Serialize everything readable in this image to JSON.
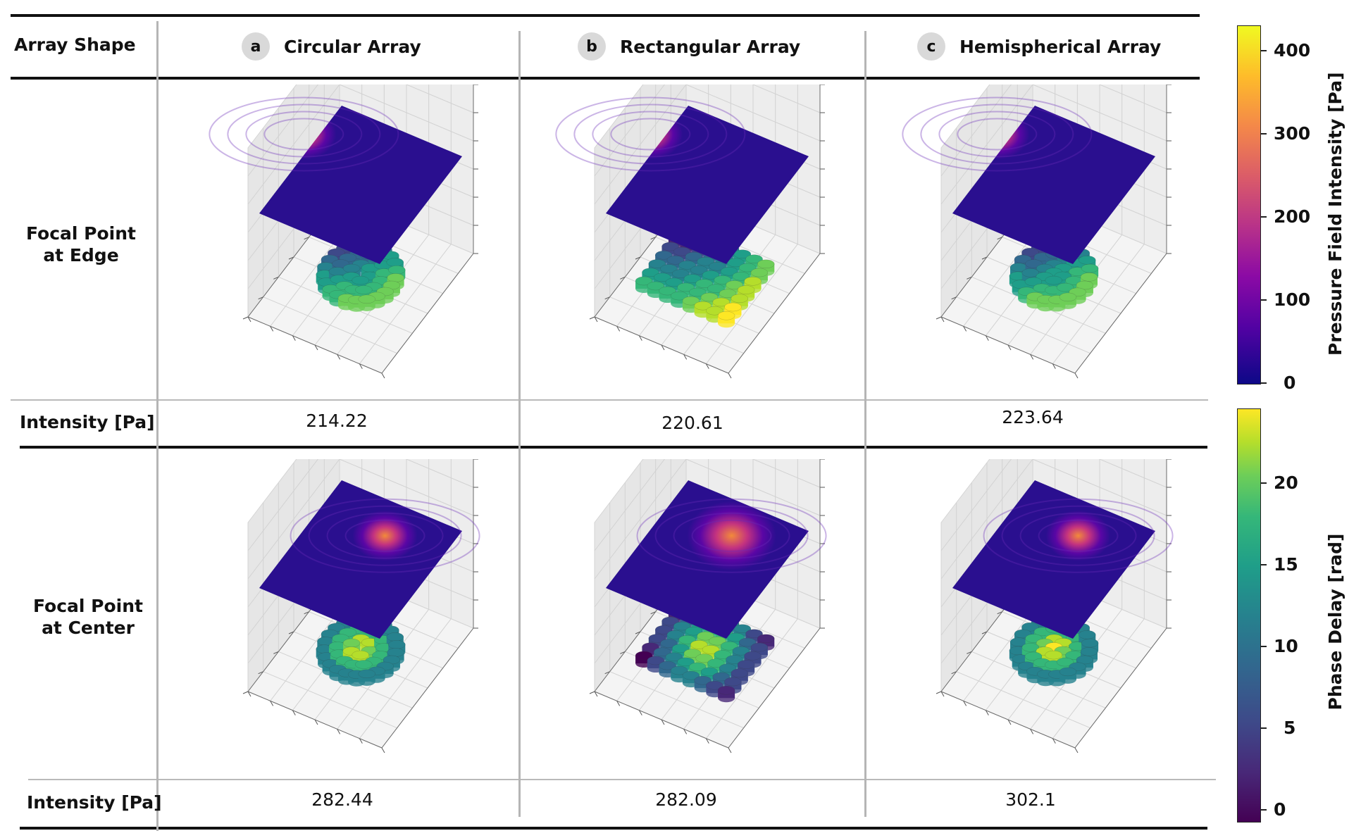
{
  "table": {
    "header_label": "Array Shape",
    "columns": [
      {
        "badge": "a",
        "title": "Circular Array"
      },
      {
        "badge": "b",
        "title": "Rectangular Array"
      },
      {
        "badge": "c",
        "title": "Hemispherical Array"
      }
    ],
    "rows": [
      {
        "label_line1": "Focal Point",
        "label_line2": "at Edge",
        "intensity_label": "Intensity [Pa]",
        "intensities": [
          "214.22",
          "220.61",
          "223.64"
        ]
      },
      {
        "label_line1": "Focal Point",
        "label_line2": "at Center",
        "intensity_label": "Intensity [Pa]",
        "intensities": [
          "282.44",
          "282.09",
          "302.1"
        ]
      }
    ]
  },
  "colorbars": {
    "pressure": {
      "title": "Pressure Field Intensity [Pa]",
      "ticks": [
        "400",
        "300",
        "200",
        "100",
        "0"
      ],
      "range": [
        0,
        430
      ],
      "colormap": "plasma"
    },
    "phase": {
      "title": "Phase Delay [rad]",
      "ticks": [
        "20",
        "15",
        "10",
        "5",
        "0"
      ],
      "range": [
        -1,
        24.5
      ],
      "colormap": "viridis"
    }
  },
  "colors": {
    "rule": "#111111",
    "grid": "#b5b5b5",
    "badge_bg": "#d9d9d9",
    "plane": "#2a0f8f",
    "focus": "#f07f3a"
  }
}
